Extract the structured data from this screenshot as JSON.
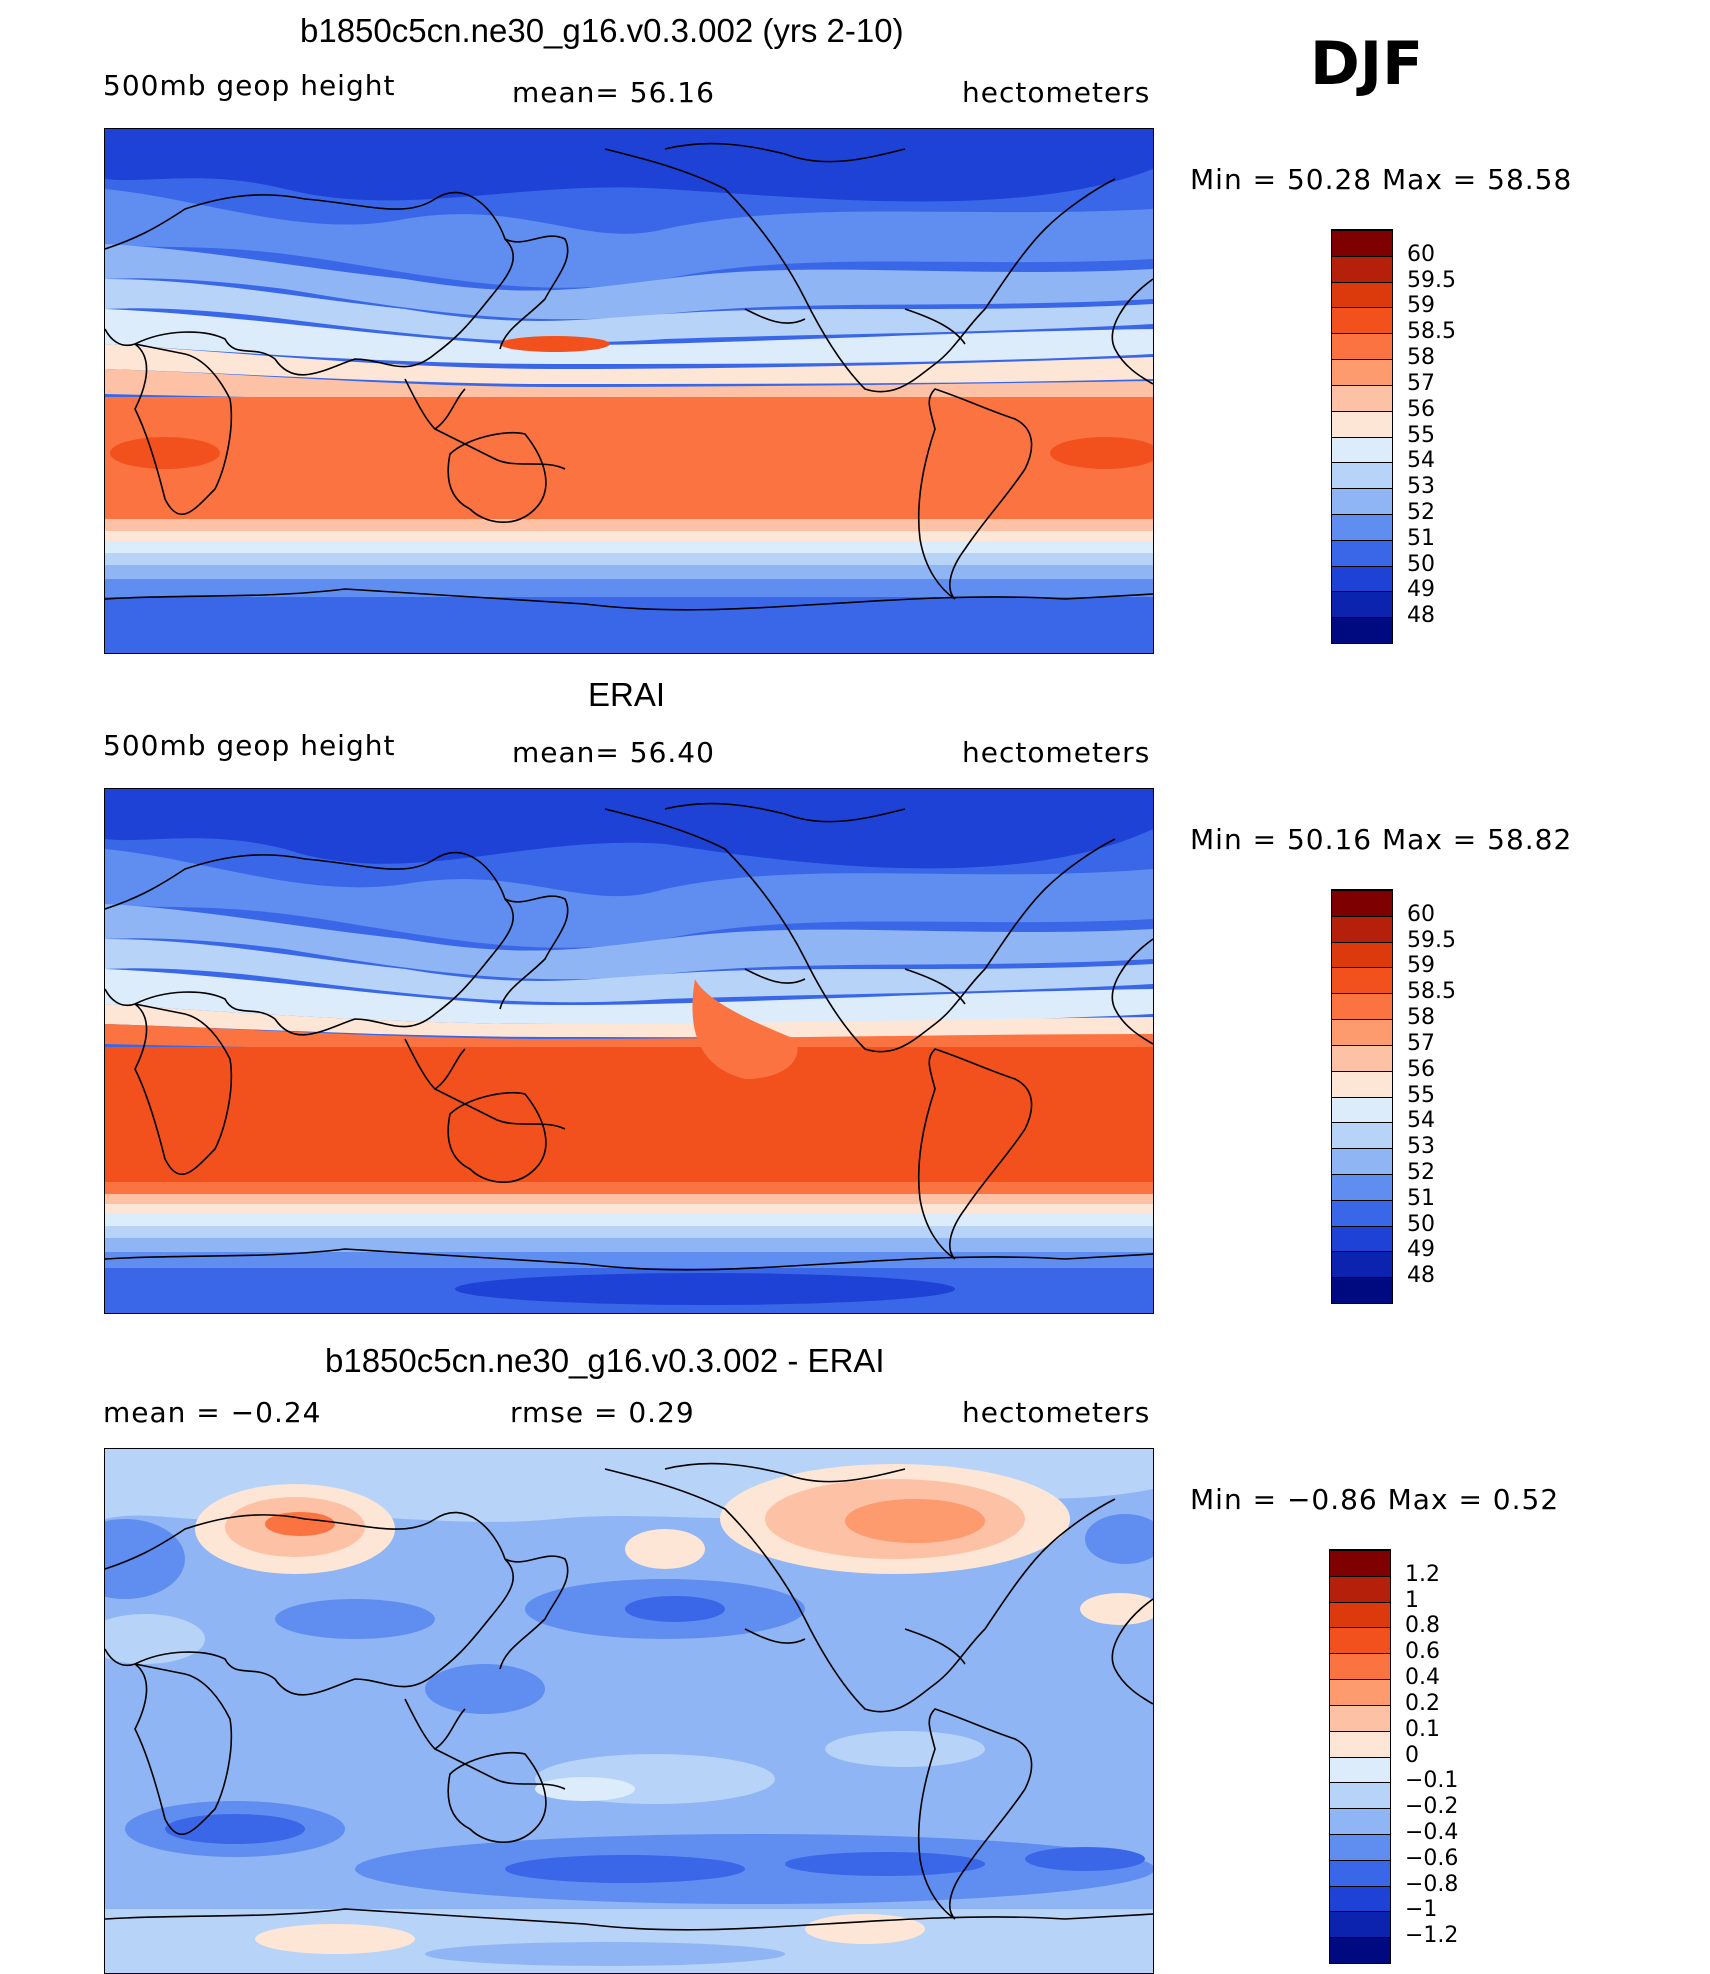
{
  "season": "DJF",
  "panels": [
    {
      "id": "model",
      "title": "b1850c5cn.ne30_g16.v0.3.002 (yrs 2-10)",
      "left_label": "500mb geop height",
      "center_label": "mean=  56.16",
      "right_label": "hectometers",
      "minmax": "Min =   50.28  Max =   58.58",
      "min": 50.28,
      "max": 58.58
    },
    {
      "id": "obs",
      "title": "ERAI",
      "left_label": "500mb geop height",
      "center_label": "mean=  56.40",
      "right_label": "hectometers",
      "minmax": "Min =   50.16  Max =   58.82",
      "min": 50.16,
      "max": 58.82
    },
    {
      "id": "diff",
      "title": "b1850c5cn.ne30_g16.v0.3.002 - ERAI",
      "left_label": "mean =   −0.24",
      "center_label": "rmse =    0.29",
      "right_label": "hectometers",
      "minmax": "Min =   −0.86  Max =     0.52",
      "min": -0.86,
      "max": 0.52
    }
  ],
  "colorbars": {
    "height": {
      "labels": [
        "60",
        "59.5",
        "59",
        "58.5",
        "58",
        "57",
        "56",
        "55",
        "54",
        "53",
        "52",
        "51",
        "50",
        "49",
        "48"
      ],
      "colors": [
        "#7f0000",
        "#b5200a",
        "#dc3a0c",
        "#f2511d",
        "#fb7340",
        "#fd9a6e",
        "#fdc2a5",
        "#fde6d6",
        "#dcecfb",
        "#b7d3f8",
        "#8fb5f4",
        "#5f8ef0",
        "#3a67e8",
        "#1f42d6",
        "#0c23b0",
        "#000a80"
      ]
    },
    "diff": {
      "labels": [
        "1.2",
        "1",
        "0.8",
        "0.6",
        "0.4",
        "0.2",
        "0.1",
        "0",
        "−0.1",
        "−0.2",
        "−0.4",
        "−0.6",
        "−0.8",
        "−1",
        "−1.2"
      ],
      "colors": [
        "#7f0000",
        "#b5200a",
        "#dc3a0c",
        "#f2511d",
        "#fb7340",
        "#fd9a6e",
        "#fdc2a5",
        "#fde6d6",
        "#dcecfb",
        "#b7d3f8",
        "#8fb5f4",
        "#5f8ef0",
        "#3a67e8",
        "#1f42d6",
        "#0c23b0",
        "#000a80"
      ]
    }
  },
  "chart_data": [
    {
      "type": "heatmap",
      "title": "b1850c5cn.ne30_g16.v0.3.002 (yrs 2-10)",
      "variable": "500mb geop height",
      "units": "hectometers",
      "mean": 56.16,
      "min": 50.28,
      "max": 58.58,
      "levels": [
        48,
        49,
        50,
        51,
        52,
        53,
        54,
        55,
        56,
        57,
        58,
        58.5,
        59,
        59.5,
        60
      ]
    },
    {
      "type": "heatmap",
      "title": "ERAI",
      "variable": "500mb geop height",
      "units": "hectometers",
      "mean": 56.4,
      "min": 50.16,
      "max": 58.82,
      "levels": [
        48,
        49,
        50,
        51,
        52,
        53,
        54,
        55,
        56,
        57,
        58,
        58.5,
        59,
        59.5,
        60
      ]
    },
    {
      "type": "heatmap",
      "title": "b1850c5cn.ne30_g16.v0.3.002 - ERAI",
      "units": "hectometers",
      "mean": -0.24,
      "rmse": 0.29,
      "min": -0.86,
      "max": 0.52,
      "levels": [
        -1.2,
        -1,
        -0.8,
        -0.6,
        -0.4,
        -0.2,
        -0.1,
        0,
        0.1,
        0.2,
        0.4,
        0.6,
        0.8,
        1,
        1.2
      ]
    }
  ]
}
